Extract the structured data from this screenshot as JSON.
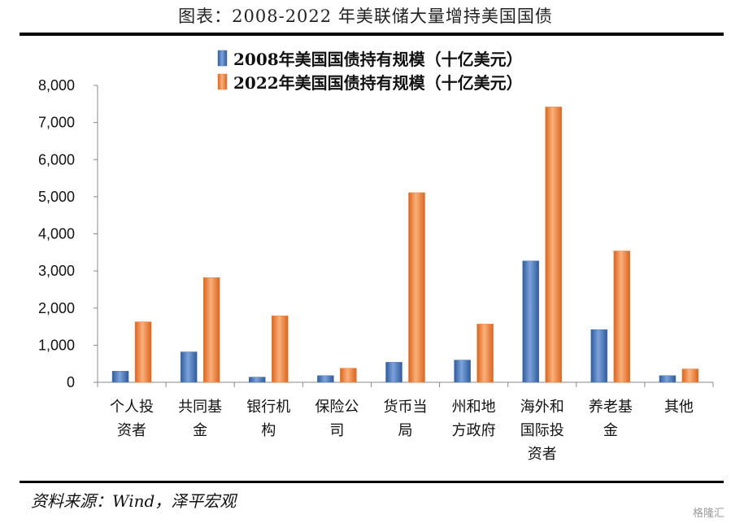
{
  "title": "图表：2008-2022 年美联储大量增持美国国债",
  "source": "资料来源：Wind，泽平宏观",
  "watermark": "格隆汇",
  "colors": {
    "series_2008": "#4a76b8",
    "series_2022": "#f07f3c"
  },
  "chart_data": {
    "type": "bar",
    "title": "图表：2008-2022 年美联储大量增持美国国债",
    "categories": [
      [
        "个人投",
        "资者"
      ],
      [
        "共同基",
        "金"
      ],
      [
        "银行机",
        "构"
      ],
      [
        "保险公",
        "司"
      ],
      [
        "货币当",
        "局"
      ],
      [
        "州和地",
        "方政府"
      ],
      [
        "海外和",
        "国际投",
        "资者"
      ],
      [
        "养老基",
        "金"
      ],
      [
        "其他"
      ]
    ],
    "series": [
      {
        "name": "2008年美国国债持有规模（十亿美元）",
        "values": [
          300,
          820,
          140,
          180,
          540,
          600,
          3270,
          1420,
          180
        ]
      },
      {
        "name": "2022年美国国债持有规模（十亿美元）",
        "values": [
          1630,
          2820,
          1790,
          380,
          5110,
          1570,
          7420,
          3540,
          360
        ]
      }
    ],
    "yticks": [
      "0",
      "1,000",
      "2,000",
      "3,000",
      "4,000",
      "5,000",
      "6,000",
      "7,000",
      "8,000"
    ],
    "ylim": [
      0,
      8000
    ],
    "xlabel": "",
    "ylabel": "",
    "legend_position": "top"
  }
}
